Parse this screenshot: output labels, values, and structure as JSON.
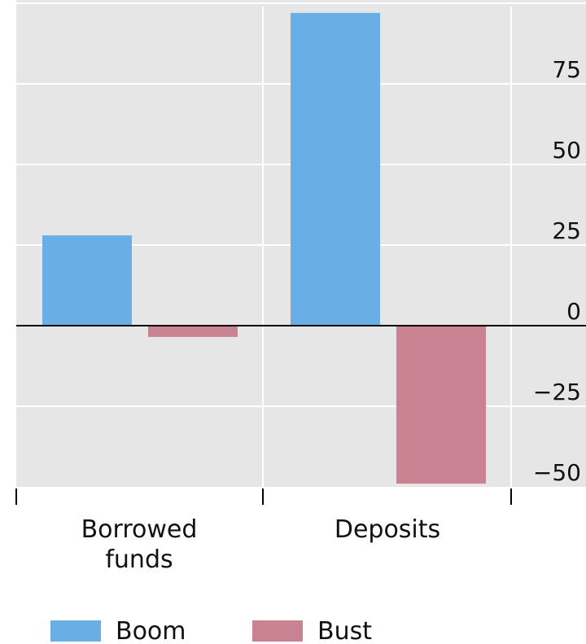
{
  "chart_data": {
    "type": "bar",
    "categories": [
      [
        "Borrowed",
        "funds"
      ],
      [
        "Deposits"
      ]
    ],
    "series": [
      {
        "name": "Boom",
        "values": [
          28,
          97
        ],
        "color": "#6aaee6"
      },
      {
        "name": "Bust",
        "values": [
          -3.5,
          -49
        ],
        "color": "#c98292"
      }
    ],
    "ylim": [
      -50,
      100
    ],
    "yticks": [
      75,
      50,
      25,
      0,
      -25,
      -50
    ],
    "ytick_labels": [
      "75",
      "50",
      "25",
      "0",
      "−25",
      "−50"
    ],
    "grid": true,
    "legend": "bottom",
    "colors": {
      "plot_background": "#e6e6e6",
      "gridline": "#ffffff",
      "zero_line": "#000000"
    }
  }
}
